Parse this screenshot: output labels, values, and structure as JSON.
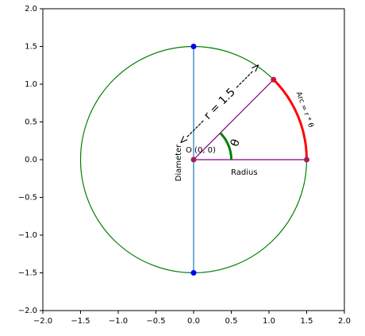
{
  "chart_data": {
    "type": "circle-geometry",
    "xlim": [
      -2,
      2
    ],
    "ylim": [
      -2,
      2
    ],
    "xticks": [
      {
        "value": -2,
        "label": "−2.0"
      },
      {
        "value": -1.5,
        "label": "−1.5"
      },
      {
        "value": -1,
        "label": "−1.0"
      },
      {
        "value": -0.5,
        "label": "−0.5"
      },
      {
        "value": 0,
        "label": "0.0"
      },
      {
        "value": 0.5,
        "label": "0.5"
      },
      {
        "value": 1,
        "label": "1.0"
      },
      {
        "value": 1.5,
        "label": "1.5"
      },
      {
        "value": 2,
        "label": "2.0"
      }
    ],
    "yticks": [
      {
        "value": -2,
        "label": "−2.0"
      },
      {
        "value": -1.5,
        "label": "−1.5"
      },
      {
        "value": -1,
        "label": "−1.0"
      },
      {
        "value": -0.5,
        "label": "−0.5"
      },
      {
        "value": 0,
        "label": "0.0"
      },
      {
        "value": 0.5,
        "label": "0.5"
      },
      {
        "value": 1,
        "label": "1.0"
      },
      {
        "value": 1.5,
        "label": "1.5"
      },
      {
        "value": 2,
        "label": "2.0"
      }
    ],
    "circle": {
      "radius": 1.5,
      "color": "green"
    },
    "diameter": {
      "x": [
        0,
        0
      ],
      "y": [
        1.5,
        -1.5
      ],
      "color": "#1f77b4",
      "label": "Diameter"
    },
    "radius_line": {
      "x": [
        0,
        1.5
      ],
      "y": [
        0,
        0
      ],
      "color": "purple",
      "label": "Radius"
    },
    "angle_line": {
      "x": [
        0,
        1.06
      ],
      "y": [
        0,
        1.06
      ],
      "color": "purple"
    },
    "arc": {
      "radius": 1.5,
      "start_angle": 0,
      "end_angle": 45,
      "color": "red",
      "label": "Arc = r * θ"
    },
    "theta_arc": {
      "radius": 0.5,
      "start_angle": 0,
      "end_angle": 45,
      "color": "green",
      "label": "θ"
    },
    "points": {
      "x": [
        0,
        0,
        0,
        1.5,
        1.06
      ],
      "y": [
        1.5,
        -1.5,
        0,
        0,
        1.06
      ],
      "colors": [
        "blue",
        "blue",
        "#a0205a",
        "#a0205a",
        "#d0103a"
      ]
    },
    "origin_label": "O (0, 0)",
    "r_label": "<------ r = 1.5 ------>"
  }
}
